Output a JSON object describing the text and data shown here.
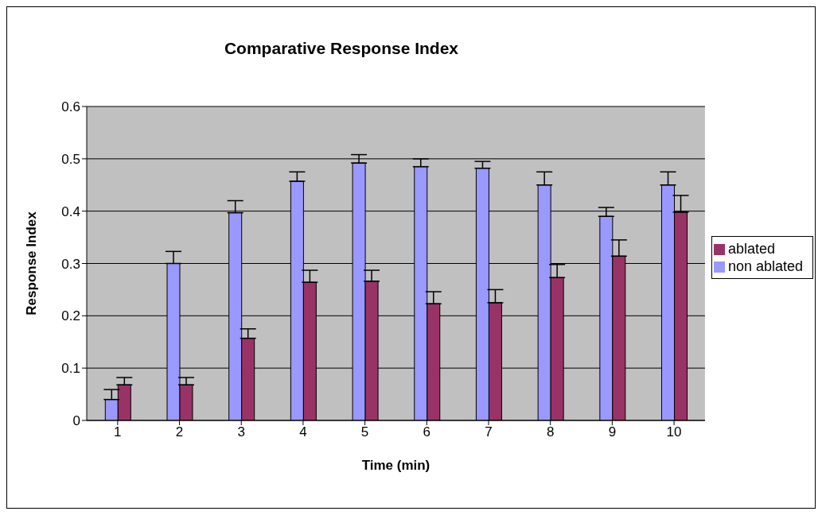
{
  "chart_data": {
    "type": "bar",
    "title": "Comparative Response Index",
    "xlabel": "Time (min)",
    "ylabel": "Response Index",
    "categories": [
      "1",
      "2",
      "3",
      "4",
      "5",
      "6",
      "7",
      "8",
      "9",
      "10"
    ],
    "series": [
      {
        "name": "non ablated",
        "color": "#9999ff",
        "values": [
          0.04,
          0.3,
          0.397,
          0.457,
          0.492,
          0.485,
          0.482,
          0.45,
          0.39,
          0.45
        ],
        "errors": [
          [
            0.04,
            0.059
          ],
          [
            0.3,
            0.323
          ],
          [
            0.397,
            0.42
          ],
          [
            0.457,
            0.475
          ],
          [
            0.492,
            0.508
          ],
          [
            0.485,
            0.5
          ],
          [
            0.482,
            0.495
          ],
          [
            0.45,
            0.475
          ],
          [
            0.39,
            0.407
          ],
          [
            0.45,
            0.475
          ]
        ]
      },
      {
        "name": "ablated",
        "color": "#993366",
        "values": [
          0.068,
          0.068,
          0.157,
          0.264,
          0.266,
          0.223,
          0.225,
          0.273,
          0.314,
          0.398
        ],
        "errors": [
          [
            0.068,
            0.082
          ],
          [
            0.068,
            0.082
          ],
          [
            0.157,
            0.175
          ],
          [
            0.264,
            0.287
          ],
          [
            0.266,
            0.287
          ],
          [
            0.223,
            0.246
          ],
          [
            0.225,
            0.25
          ],
          [
            0.273,
            0.298
          ],
          [
            0.314,
            0.345
          ],
          [
            0.398,
            0.43
          ]
        ]
      }
    ],
    "ylim": [
      0,
      0.6
    ],
    "yticks": [
      0,
      0.1,
      0.2,
      0.3,
      0.4,
      0.5,
      0.6
    ],
    "grid": "y",
    "legend": "right"
  }
}
